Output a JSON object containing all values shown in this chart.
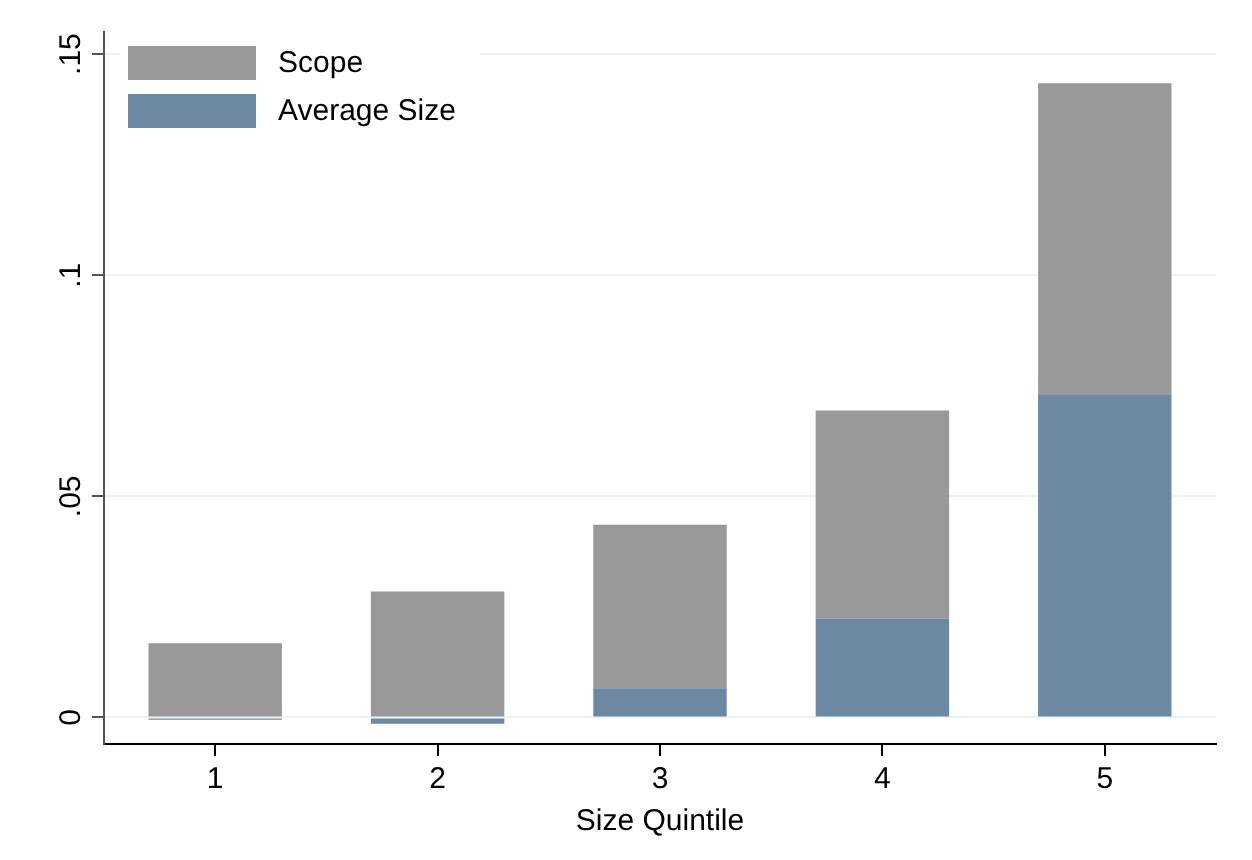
{
  "chart_data": {
    "type": "bar",
    "xlabel": "Size Quintile",
    "stacked": true,
    "categories": [
      "1",
      "2",
      "3",
      "4",
      "5"
    ],
    "series": [
      {
        "name": "Average Size",
        "color": "#6d88a3",
        "values": [
          -0.0005,
          -0.0014,
          0.0066,
          0.0223,
          0.0729
        ]
      },
      {
        "name": "Scope",
        "color": "#999999",
        "values": [
          0.0168,
          0.0285,
          0.037,
          0.0471,
          0.0705
        ]
      }
    ],
    "ylim": [
      -0.006,
      0.155
    ],
    "yticks": [
      {
        "value": 0,
        "label": "0"
      },
      {
        "value": 0.05,
        "label": ".05"
      },
      {
        "value": 0.1,
        "label": ".1"
      },
      {
        "value": 0.15,
        "label": ".15"
      }
    ],
    "grid": "y",
    "legend": "top left"
  }
}
